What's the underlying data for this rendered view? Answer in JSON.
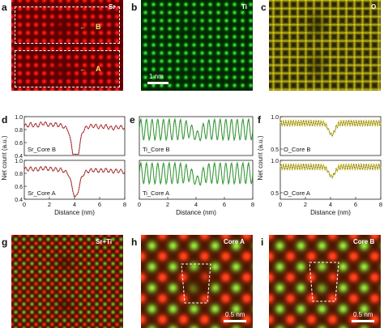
{
  "panels": {
    "a": {
      "letter": "a",
      "element": "Sr",
      "markers": [
        "B",
        "A"
      ]
    },
    "b": {
      "letter": "b",
      "element": "Ti",
      "scale": "1 nm"
    },
    "c": {
      "letter": "c",
      "element": "O"
    },
    "g": {
      "letter": "g",
      "element": "Sr+Ti"
    },
    "h": {
      "letter": "h",
      "element": "Core A",
      "scale": "0.5 nm"
    },
    "i": {
      "letter": "i",
      "element": "Core B",
      "scale": "0.5 nm"
    }
  },
  "colors": {
    "sr": "#e02020",
    "ti": "#22d022",
    "o": "#e8dc20"
  },
  "chart_data": [
    {
      "type": "line",
      "letter": "d",
      "xlabel": "Distance (nm)",
      "ylabel": "Net count (a.u.)",
      "xlim": [
        0,
        8
      ],
      "ylim": [
        0.4,
        1.0
      ],
      "xticks": [
        "0",
        "2",
        "4",
        "6",
        "8"
      ],
      "yticks": [
        "0.4",
        "0.6",
        "0.8",
        "1.0"
      ],
      "color": "#e02020",
      "series": [
        {
          "name": "Sr_Core B",
          "x": [
            0,
            0.5,
            1,
            1.5,
            2,
            2.5,
            3,
            3.5,
            3.8,
            4,
            4.3,
            4.6,
            5,
            5.5,
            6,
            6.5,
            7,
            7.5,
            8
          ],
          "values": [
            0.85,
            0.88,
            0.86,
            0.9,
            0.87,
            0.88,
            0.86,
            0.8,
            0.62,
            0.5,
            0.58,
            0.78,
            0.84,
            0.86,
            0.84,
            0.85,
            0.82,
            0.84,
            0.83
          ]
        },
        {
          "name": "Sr_Core A",
          "x": [
            0,
            0.5,
            1,
            1.5,
            2,
            2.5,
            3,
            3.5,
            3.8,
            4,
            4.3,
            4.6,
            5,
            5.5,
            6,
            6.5,
            7,
            7.5,
            8
          ],
          "values": [
            0.86,
            0.87,
            0.86,
            0.88,
            0.87,
            0.86,
            0.85,
            0.8,
            0.68,
            0.6,
            0.66,
            0.78,
            0.83,
            0.85,
            0.84,
            0.85,
            0.83,
            0.84,
            0.82
          ]
        }
      ]
    },
    {
      "type": "line",
      "letter": "e",
      "xlabel": "Distance (nm)",
      "ylabel": "",
      "xlim": [
        0,
        8
      ],
      "ylim": [
        0.4,
        1.0
      ],
      "xticks": [
        "0",
        "2",
        "4",
        "6",
        "8"
      ],
      "yticks": [],
      "color": "#22c022",
      "series": [
        {
          "name": "Ti_Core B",
          "x": [
            0,
            8
          ],
          "values": [
            0.8,
            0.8
          ]
        },
        {
          "name": "Ti_Core A",
          "x": [
            0,
            8
          ],
          "values": [
            0.8,
            0.8
          ]
        }
      ]
    },
    {
      "type": "line",
      "letter": "f",
      "xlabel": "Distance (nm)",
      "ylabel": "Net count (a.u.)",
      "xlim": [
        0,
        8
      ],
      "ylim": [
        0.4,
        1.0
      ],
      "xticks": [
        "0",
        "2",
        "4",
        "6",
        "8"
      ],
      "yticks": [
        "0.5",
        "1.0"
      ],
      "color": "#e8d820",
      "series": [
        {
          "name": "O_Core B",
          "x": [
            0,
            8
          ],
          "values": [
            0.9,
            0.9
          ]
        },
        {
          "name": "O_Core A",
          "x": [
            0,
            8
          ],
          "values": [
            0.9,
            0.9
          ]
        }
      ]
    }
  ]
}
